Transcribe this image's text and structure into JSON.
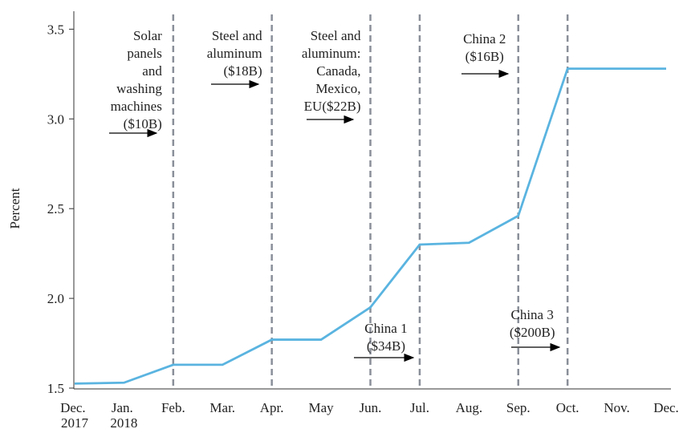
{
  "chart_data": {
    "type": "line",
    "ylabel": "Percent",
    "categories": [
      "Dec. 2017",
      "Jan. 2018",
      "Feb.",
      "Mar.",
      "Apr.",
      "May",
      "Jun.",
      "Jul.",
      "Aug.",
      "Sep.",
      "Oct.",
      "Nov.",
      "Dec."
    ],
    "values": [
      1.525,
      1.53,
      1.63,
      1.63,
      1.77,
      1.77,
      1.95,
      2.3,
      2.31,
      2.46,
      3.28,
      3.28,
      3.28
    ],
    "color": "#5ab4e0",
    "ylim": [
      1.5,
      3.6
    ],
    "yticks": [
      1.5,
      {
        "value": 2,
        "label": "2.0"
      },
      2.5,
      {
        "value": 3,
        "label": "3.0"
      },
      3.5
    ],
    "events": [
      {
        "at": "Feb.",
        "label": [
          "Solar",
          "panels",
          "and",
          "washing",
          "machines",
          "($10B)"
        ]
      },
      {
        "at": "Apr.",
        "label": [
          "Steel and",
          "aluminum",
          "($18B)"
        ]
      },
      {
        "at": "Jun.",
        "label": [
          "Steel and",
          "aluminum:",
          "Canada,",
          "Mexico,",
          "EU($22B)"
        ]
      },
      {
        "at": "Jul.",
        "label": [
          "China 1",
          "($34B)"
        ]
      },
      {
        "at": "Sep.",
        "label": [
          "China 2",
          "($16B)"
        ]
      },
      {
        "at": "Oct.",
        "label": [
          "China 3",
          "($200B)"
        ]
      }
    ]
  }
}
